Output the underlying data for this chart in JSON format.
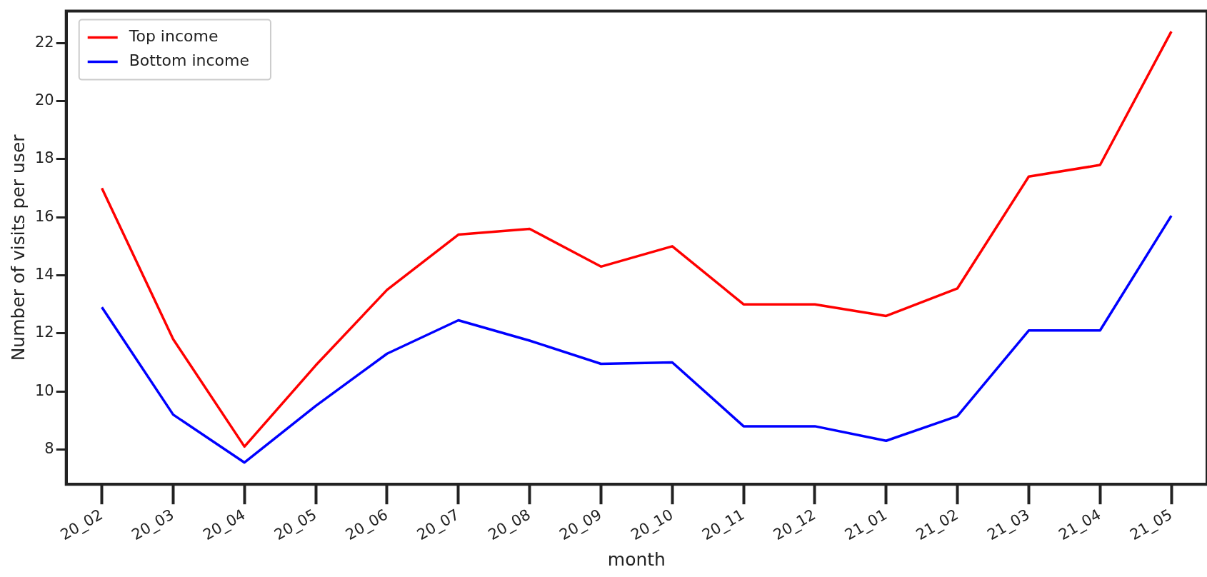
{
  "chart_data": {
    "type": "line",
    "xlabel": "month",
    "ylabel": "Number of visits per user",
    "categories": [
      "20_02",
      "20_03",
      "20_04",
      "20_05",
      "20_06",
      "20_07",
      "20_08",
      "20_09",
      "20_10",
      "20_11",
      "20_12",
      "21_01",
      "21_02",
      "21_03",
      "21_04",
      "21_05"
    ],
    "series": [
      {
        "name": "Top income",
        "color": "#ff0000",
        "values": [
          17.0,
          11.8,
          8.1,
          10.9,
          13.5,
          15.4,
          15.6,
          14.3,
          15.0,
          13.0,
          13.0,
          12.6,
          13.55,
          17.4,
          17.8,
          22.4
        ]
      },
      {
        "name": "Bottom income",
        "color": "#0000ff",
        "values": [
          12.9,
          9.2,
          7.55,
          9.5,
          11.3,
          12.45,
          11.75,
          10.95,
          11.0,
          8.8,
          8.8,
          8.3,
          9.15,
          12.1,
          12.1,
          16.05
        ]
      }
    ],
    "ylim": [
      6.8,
      23.1
    ],
    "yticks": [
      8,
      10,
      12,
      14,
      16,
      18,
      20,
      22
    ],
    "grid": false,
    "legend": "top left",
    "marker": "none",
    "line_style": "solid"
  }
}
